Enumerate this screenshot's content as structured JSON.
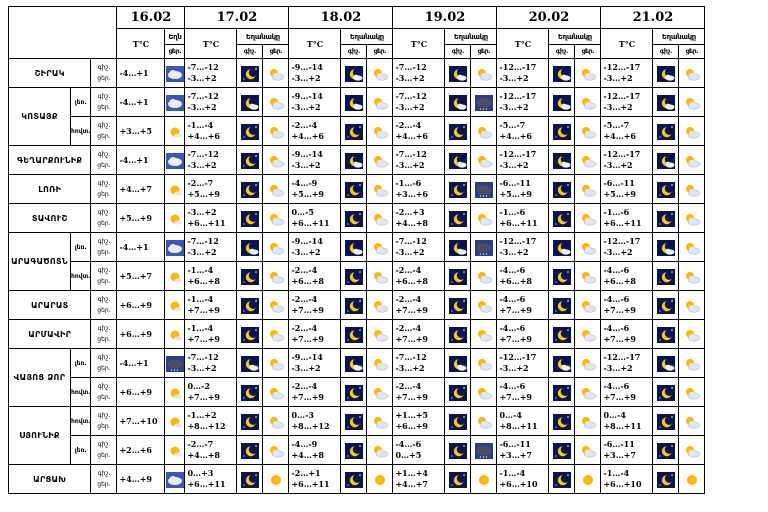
{
  "dates": [
    "16.02",
    "17.02",
    "18.02",
    "19.02",
    "20.02",
    "21.02"
  ],
  "header": {
    "temp": "T°C",
    "weather": "Եղանակը",
    "day": "ցերեկ",
    "night": "գիշ.",
    "day_short": "ցեր.",
    "weather_short_16": "Եղն",
    "day_short_16": "ցեր."
  },
  "row_labels": {
    "night": "գիշ.",
    "day": "ցեր."
  },
  "rows": [
    {
      "region": "ՇԻՐԱԿ",
      "sub": "",
      "t16": [
        "-4…+1"
      ],
      "i16": [
        "cloudy"
      ],
      "cols": [
        {
          "t": [
            "-7…-12",
            "-3…+2"
          ],
          "n": "moon",
          "d": "partly-cloudy"
        },
        {
          "t": [
            "-9…-14",
            "-3…+2"
          ],
          "n": "moon-cloud",
          "d": "partly-cloudy"
        },
        {
          "t": [
            "-7…-12",
            "-3…+2"
          ],
          "n": "moon-cloud",
          "d": "partly-cloudy"
        },
        {
          "t": [
            "-12…-17",
            "-3…+2"
          ],
          "n": "moon-cloud",
          "d": "partly-cloudy"
        },
        {
          "t": [
            "-12…-17",
            "-3…+2"
          ],
          "n": "moon-cloud",
          "d": "partly-cloudy"
        }
      ]
    },
    {
      "region": "ԿՈՏԱՅՔ",
      "sub": "լեռ.",
      "t16": [
        "-4…+1"
      ],
      "i16": [
        "cloudy"
      ],
      "cols": [
        {
          "t": [
            "-7…-12",
            "-3…+2"
          ],
          "n": "moon-cloud",
          "d": "partly-cloudy"
        },
        {
          "t": [
            "-9…-14",
            "-3…+2"
          ],
          "n": "moon-cloud",
          "d": "partly-cloudy"
        },
        {
          "t": [
            "-7…-12",
            "-3…+2"
          ],
          "n": "moon-cloud",
          "d": "dark-cloud"
        },
        {
          "t": [
            "-12…-17",
            "-3…+2"
          ],
          "n": "moon-cloud",
          "d": "partly-cloudy"
        },
        {
          "t": [
            "-12…-17",
            "-3…+2"
          ],
          "n": "moon-cloud",
          "d": "partly-cloudy"
        }
      ]
    },
    {
      "region": "",
      "sub": "հովտ.",
      "t16": [
        "+3…+5"
      ],
      "i16": [
        "sun-cloud"
      ],
      "cols": [
        {
          "t": [
            "-1…-4",
            "+4…+6"
          ],
          "n": "moon",
          "d": "partly-cloudy"
        },
        {
          "t": [
            "-2…-4",
            "+4…+6"
          ],
          "n": "moon",
          "d": "partly-cloudy"
        },
        {
          "t": [
            "-2…-4",
            "+4…+6"
          ],
          "n": "moon",
          "d": "partly-cloudy"
        },
        {
          "t": [
            "-5…-7",
            "+4…+6"
          ],
          "n": "moon",
          "d": "partly-cloudy"
        },
        {
          "t": [
            "-5…-7",
            "+4…+6"
          ],
          "n": "moon",
          "d": "partly-cloudy"
        }
      ]
    },
    {
      "region": "ԳԵՂԱՐՔՈՒՆԻՔ",
      "sub": "",
      "t16": [
        "-4…+1"
      ],
      "i16": [
        "cloudy"
      ],
      "cols": [
        {
          "t": [
            "-7…-12",
            "-3…+2"
          ],
          "n": "moon",
          "d": "partly-cloudy"
        },
        {
          "t": [
            "-9…-14",
            "-3…+2"
          ],
          "n": "moon-cloud",
          "d": "partly-cloudy"
        },
        {
          "t": [
            "-7…-12",
            "-3…+2"
          ],
          "n": "moon-cloud",
          "d": "partly-cloudy"
        },
        {
          "t": [
            "-12…-17",
            "-3…+2"
          ],
          "n": "moon-cloud",
          "d": "partly-cloudy"
        },
        {
          "t": [
            "-12…-17",
            "-3…+2"
          ],
          "n": "moon-cloud",
          "d": "partly-cloudy"
        }
      ]
    },
    {
      "region": "ԼՈՌԻ",
      "sub": "",
      "t16": [
        "+4…+7"
      ],
      "i16": [
        "sun-cloud"
      ],
      "cols": [
        {
          "t": [
            "-2…-7",
            "+5…+9"
          ],
          "n": "moon",
          "d": "partly-cloudy"
        },
        {
          "t": [
            "-4…-9",
            "+5…+9"
          ],
          "n": "moon",
          "d": "partly-cloudy"
        },
        {
          "t": [
            "-1…-6",
            "+3…+6"
          ],
          "n": "moon",
          "d": "dark-cloud"
        },
        {
          "t": [
            "-6…-11",
            "+5…+9"
          ],
          "n": "moon",
          "d": "partly-cloudy"
        },
        {
          "t": [
            "-6…-11",
            "+5…+9"
          ],
          "n": "moon",
          "d": "partly-cloudy"
        }
      ]
    },
    {
      "region": "ՏԱՎՈՒՇ",
      "sub": "",
      "t16": [
        "+5…+9"
      ],
      "i16": [
        "sun-cloud"
      ],
      "cols": [
        {
          "t": [
            "-3…+2",
            "+6…+11"
          ],
          "n": "moon",
          "d": "partly-cloudy"
        },
        {
          "t": [
            "0…-5",
            "+6…+11"
          ],
          "n": "moon",
          "d": "partly-cloudy"
        },
        {
          "t": [
            "-2…+3",
            "+4…+8"
          ],
          "n": "moon",
          "d": "partly-cloudy"
        },
        {
          "t": [
            "-1…-6",
            "+6…+11"
          ],
          "n": "moon",
          "d": "partly-cloudy"
        },
        {
          "t": [
            "-1…-6",
            "+6…+11"
          ],
          "n": "moon",
          "d": "partly-cloudy"
        }
      ]
    },
    {
      "region": "ԱՐԱԳԱԾՈՏՆ",
      "sub": "լեռ.",
      "t16": [
        "-4…+1"
      ],
      "i16": [
        "cloudy"
      ],
      "cols": [
        {
          "t": [
            "-7…-12",
            "-3…+2"
          ],
          "n": "moon-cloud",
          "d": "partly-cloudy"
        },
        {
          "t": [
            "-9…-14",
            "-3…+2"
          ],
          "n": "moon-cloud",
          "d": "partly-cloudy"
        },
        {
          "t": [
            "-7…-12",
            "-3…+2"
          ],
          "n": "moon-cloud",
          "d": "dark-cloud"
        },
        {
          "t": [
            "-12…-17",
            "-3…+2"
          ],
          "n": "moon-cloud",
          "d": "partly-cloudy"
        },
        {
          "t": [
            "-12…-17",
            "-3…+2"
          ],
          "n": "moon-cloud",
          "d": "partly-cloudy"
        }
      ]
    },
    {
      "region": "",
      "sub": "հովտ.",
      "t16": [
        "+5…+7"
      ],
      "i16": [
        "sun-cloud"
      ],
      "cols": [
        {
          "t": [
            "-1…-4",
            "+6…+8"
          ],
          "n": "moon",
          "d": "partly-cloudy"
        },
        {
          "t": [
            "-2…-4",
            "+6…+8"
          ],
          "n": "moon",
          "d": "partly-cloudy"
        },
        {
          "t": [
            "-2…-4",
            "+6…+8"
          ],
          "n": "moon",
          "d": "partly-cloudy"
        },
        {
          "t": [
            "-4…-6",
            "+6…+8"
          ],
          "n": "moon",
          "d": "partly-cloudy"
        },
        {
          "t": [
            "-4…-6",
            "+6…+8"
          ],
          "n": "moon",
          "d": "partly-cloudy"
        }
      ]
    },
    {
      "region": "ԱՐԱՐԱՏ",
      "sub": "",
      "t16": [
        "+6…+9"
      ],
      "i16": [
        "sun-cloud"
      ],
      "cols": [
        {
          "t": [
            "-1…-4",
            "+7…+9"
          ],
          "n": "moon",
          "d": "partly-cloudy"
        },
        {
          "t": [
            "-2…-4",
            "+7…+9"
          ],
          "n": "moon",
          "d": "partly-cloudy"
        },
        {
          "t": [
            "-2…-4",
            "+7…+9"
          ],
          "n": "moon",
          "d": "partly-cloudy"
        },
        {
          "t": [
            "-4…-6",
            "+7…+9"
          ],
          "n": "moon",
          "d": "partly-cloudy"
        },
        {
          "t": [
            "-4…-6",
            "+7…+9"
          ],
          "n": "moon",
          "d": "partly-cloudy"
        }
      ]
    },
    {
      "region": "ԱՐՄԱՎԻՐ",
      "sub": "",
      "t16": [
        "+6…+9"
      ],
      "i16": [
        "sun-cloud"
      ],
      "cols": [
        {
          "t": [
            "-1…-4",
            "+7…+9"
          ],
          "n": "moon",
          "d": "partly-cloudy"
        },
        {
          "t": [
            "-2…-4",
            "+7…+9"
          ],
          "n": "moon",
          "d": "partly-cloudy"
        },
        {
          "t": [
            "-2…-4",
            "+7…+9"
          ],
          "n": "moon",
          "d": "partly-cloudy"
        },
        {
          "t": [
            "-4…-6",
            "+7…+9"
          ],
          "n": "moon",
          "d": "partly-cloudy"
        },
        {
          "t": [
            "-4…-6",
            "+7…+9"
          ],
          "n": "moon",
          "d": "partly-cloudy"
        }
      ]
    },
    {
      "region": "ՎԱՅՈՑ ՁՈՐ",
      "sub": "լեռ.",
      "t16": [
        "-4…+1"
      ],
      "i16": [
        "dark-cloud"
      ],
      "cols": [
        {
          "t": [
            "-7…-12",
            "-3…+2"
          ],
          "n": "moon-cloud",
          "d": "partly-cloudy"
        },
        {
          "t": [
            "-9…-14",
            "-3…+2"
          ],
          "n": "moon-cloud",
          "d": "partly-cloudy"
        },
        {
          "t": [
            "-7…-12",
            "-3…+2"
          ],
          "n": "moon-cloud",
          "d": "partly-cloudy"
        },
        {
          "t": [
            "-12…-17",
            "-3…+2"
          ],
          "n": "moon-cloud",
          "d": "partly-cloudy"
        },
        {
          "t": [
            "-12…-17",
            "-3…+2"
          ],
          "n": "moon-cloud",
          "d": "partly-cloudy"
        }
      ]
    },
    {
      "region": "",
      "sub": "հովտ.",
      "t16": [
        "+6…+9"
      ],
      "i16": [
        "sun-cloud"
      ],
      "cols": [
        {
          "t": [
            "0…-2",
            "+7…+9"
          ],
          "n": "moon",
          "d": "partly-cloudy"
        },
        {
          "t": [
            "-2…-4",
            "+7…+9"
          ],
          "n": "moon",
          "d": "partly-cloudy"
        },
        {
          "t": [
            "-2…-4",
            "+7…+9"
          ],
          "n": "moon",
          "d": "partly-cloudy"
        },
        {
          "t": [
            "-4…-6",
            "+7…+9"
          ],
          "n": "moon",
          "d": "partly-cloudy"
        },
        {
          "t": [
            "-4…-6",
            "+7…+9"
          ],
          "n": "moon",
          "d": "partly-cloudy"
        }
      ]
    },
    {
      "region": "ՍՅՈՒՆԻՔ",
      "sub": "հովտ.",
      "t16": [
        "+7…+10"
      ],
      "i16": [
        "sun-cloud"
      ],
      "cols": [
        {
          "t": [
            "-1…+2",
            "+8…+12"
          ],
          "n": "moon",
          "d": "partly-cloudy"
        },
        {
          "t": [
            "0…-3",
            "+8…+12"
          ],
          "n": "moon",
          "d": "partly-cloudy"
        },
        {
          "t": [
            "+1…+5",
            "+6…+9"
          ],
          "n": "moon",
          "d": "partly-cloudy"
        },
        {
          "t": [
            "0…-4",
            "+8…+11"
          ],
          "n": "moon",
          "d": "partly-cloudy"
        },
        {
          "t": [
            "0…-4",
            "+8…+11"
          ],
          "n": "moon",
          "d": "partly-cloudy"
        }
      ]
    },
    {
      "region": "",
      "sub": "լեռ.",
      "t16": [
        "+2…+6"
      ],
      "i16": [
        "sun-cloud"
      ],
      "cols": [
        {
          "t": [
            "-2…-7",
            "+4…+8"
          ],
          "n": "moon",
          "d": "partly-cloudy"
        },
        {
          "t": [
            "-4…-9",
            "+4…+8"
          ],
          "n": "moon",
          "d": "partly-cloudy"
        },
        {
          "t": [
            "-4…-6",
            "0…+5"
          ],
          "n": "moon",
          "d": "dark-cloud"
        },
        {
          "t": [
            "-6…-11",
            "+3…+7"
          ],
          "n": "moon",
          "d": "partly-cloudy"
        },
        {
          "t": [
            "-6…-11",
            "+3…+7"
          ],
          "n": "moon",
          "d": "partly-cloudy"
        }
      ]
    },
    {
      "region": "ԱՐՑԱԽ",
      "sub": "",
      "t16": [
        "+4…+9"
      ],
      "i16": [
        "cloudy"
      ],
      "cols": [
        {
          "t": [
            "0…+3",
            "+6…+11"
          ],
          "n": "moon",
          "d": "sun"
        },
        {
          "t": [
            "-2…+1",
            "+6…+11"
          ],
          "n": "moon",
          "d": "sun"
        },
        {
          "t": [
            "+1…+4",
            "+4…+7"
          ],
          "n": "moon",
          "d": "sun"
        },
        {
          "t": [
            "-1…-4",
            "+6…+10"
          ],
          "n": "moon",
          "d": "sun"
        },
        {
          "t": [
            "-1…-4",
            "+6…+10"
          ],
          "n": "moon",
          "d": "sun"
        }
      ]
    }
  ]
}
